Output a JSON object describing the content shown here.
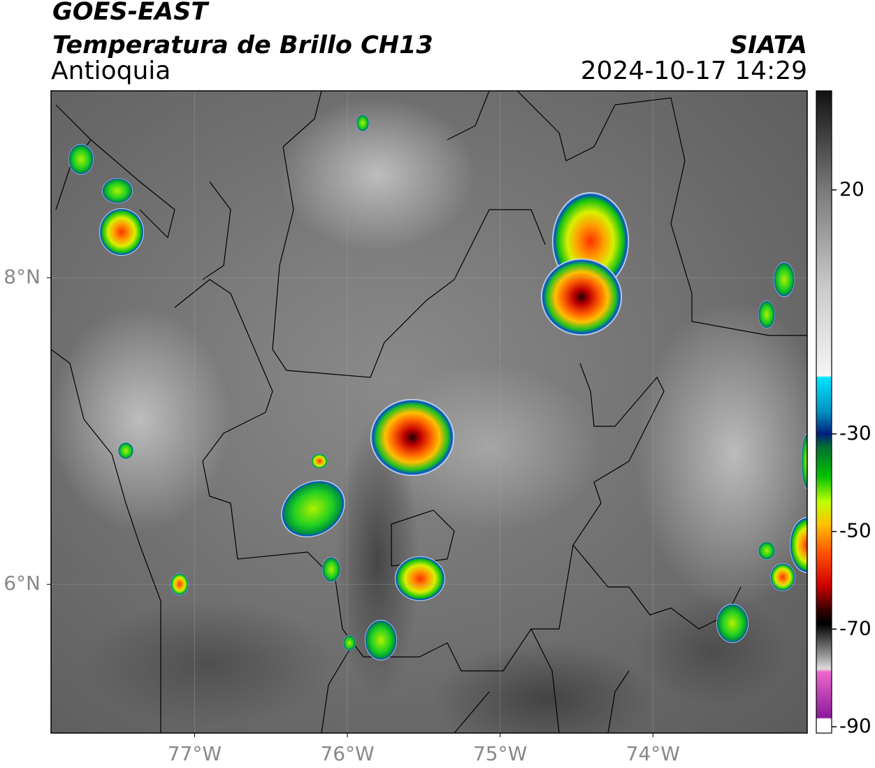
{
  "header": {
    "title": "GOES-EAST",
    "product": "Temperatura de Brillo CH13",
    "region": "Antioquia",
    "source": "SIATA",
    "timestamp": "2024-10-17 14:29"
  },
  "map": {
    "xlim": [
      -77.94,
      -72.99
    ],
    "ylim": [
      5.03,
      9.22
    ],
    "xticks": [
      {
        "value": -77,
        "label": "77°W"
      },
      {
        "value": -76,
        "label": "76°W"
      },
      {
        "value": -75,
        "label": "75°W"
      },
      {
        "value": -74,
        "label": "74°W"
      }
    ],
    "yticks": [
      {
        "value": 8,
        "label": "8°N"
      },
      {
        "value": 6,
        "label": "6°N"
      }
    ],
    "grid": true
  },
  "colorbar": {
    "lim": [
      -91.3,
      40.3
    ],
    "ticks": [
      20,
      -30,
      -50,
      -70,
      -90
    ]
  }
}
